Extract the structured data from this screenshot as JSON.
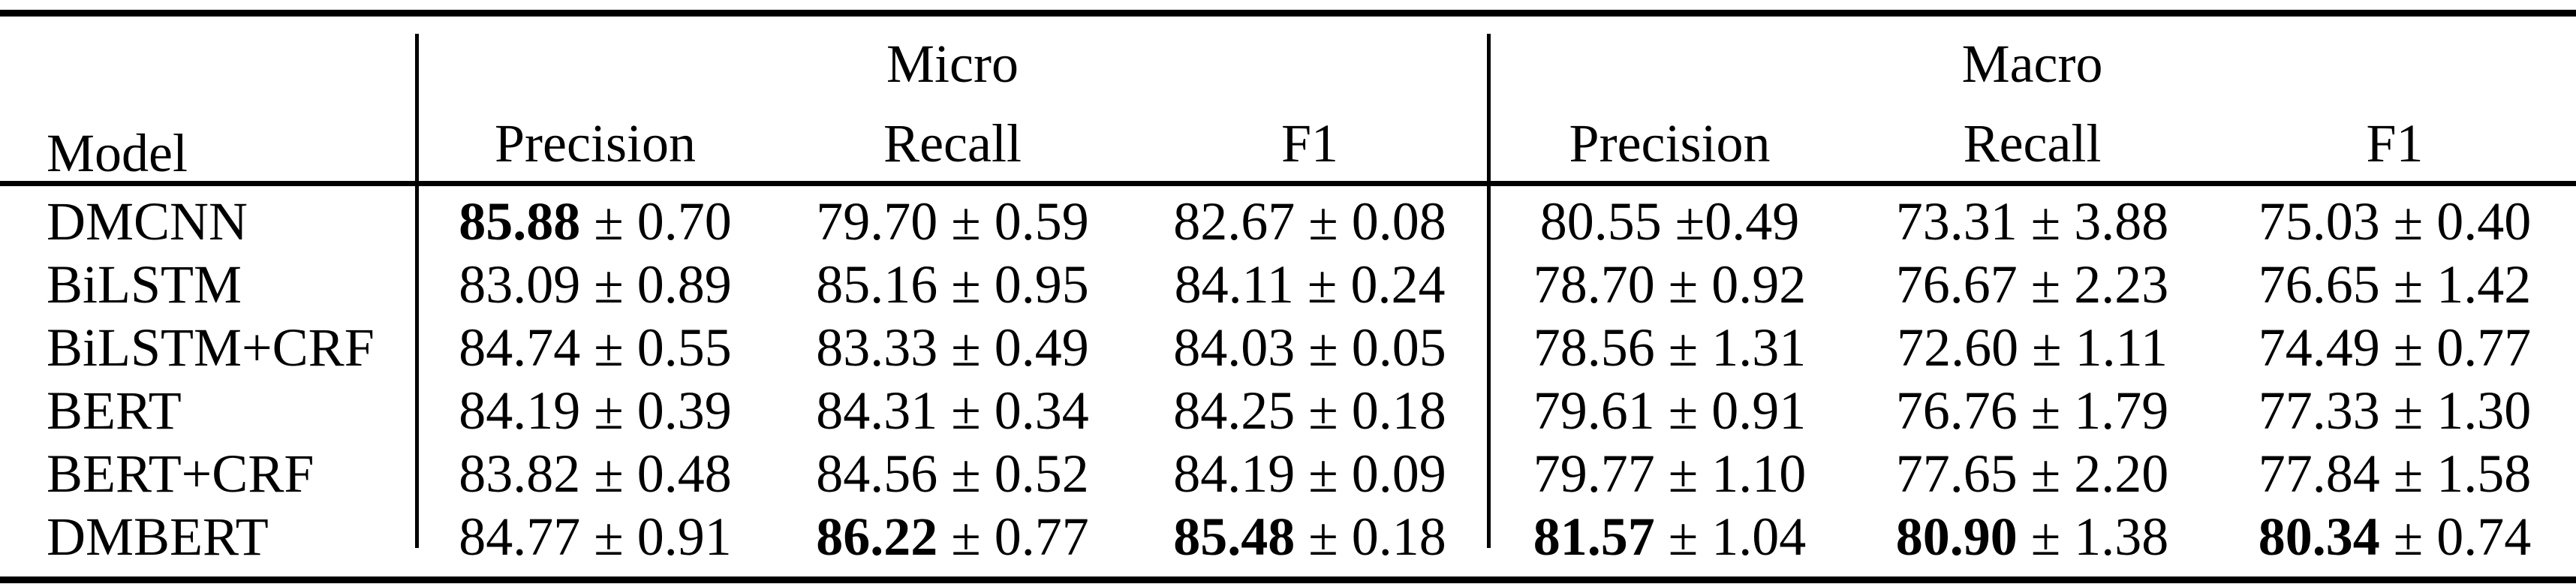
{
  "colors": {
    "text": "#000000",
    "background": "#ffffff",
    "rule": "#000000"
  },
  "table": {
    "header": {
      "model_label": "Model",
      "groups": [
        {
          "label": "Micro",
          "cols": [
            "Precision",
            "Recall",
            "F1"
          ]
        },
        {
          "label": "Macro",
          "cols": [
            "Precision",
            "Recall",
            "F1"
          ]
        }
      ]
    },
    "rows": [
      {
        "model": "DMCNN",
        "cells": [
          {
            "main": "85.88",
            "rest": "± 0.70",
            "bold": true
          },
          {
            "main": "79.70",
            "rest": "± 0.59",
            "bold": false
          },
          {
            "main": "82.67",
            "rest": "± 0.08",
            "bold": false
          },
          {
            "main": "80.55",
            "rest": "±0.49",
            "bold": false
          },
          {
            "main": "73.31",
            "rest": "± 3.88",
            "bold": false
          },
          {
            "main": "75.03",
            "rest": "± 0.40",
            "bold": false
          }
        ]
      },
      {
        "model": "BiLSTM",
        "cells": [
          {
            "main": "83.09",
            "rest": "± 0.89",
            "bold": false
          },
          {
            "main": "85.16",
            "rest": "± 0.95",
            "bold": false
          },
          {
            "main": "84.11",
            "rest": "± 0.24",
            "bold": false
          },
          {
            "main": "78.70",
            "rest": "± 0.92",
            "bold": false
          },
          {
            "main": "76.67",
            "rest": "± 2.23",
            "bold": false
          },
          {
            "main": "76.65",
            "rest": "± 1.42",
            "bold": false
          }
        ]
      },
      {
        "model": "BiLSTM+CRF",
        "cells": [
          {
            "main": "84.74",
            "rest": "± 0.55",
            "bold": false
          },
          {
            "main": "83.33",
            "rest": "± 0.49",
            "bold": false
          },
          {
            "main": "84.03",
            "rest": "± 0.05",
            "bold": false
          },
          {
            "main": "78.56",
            "rest": "± 1.31",
            "bold": false
          },
          {
            "main": "72.60",
            "rest": "± 1.11",
            "bold": false
          },
          {
            "main": "74.49",
            "rest": "± 0.77",
            "bold": false
          }
        ]
      },
      {
        "model": "BERT",
        "cells": [
          {
            "main": "84.19",
            "rest": "± 0.39",
            "bold": false
          },
          {
            "main": "84.31",
            "rest": "± 0.34",
            "bold": false
          },
          {
            "main": "84.25",
            "rest": "± 0.18",
            "bold": false
          },
          {
            "main": "79.61",
            "rest": "± 0.91",
            "bold": false
          },
          {
            "main": "76.76",
            "rest": "± 1.79",
            "bold": false
          },
          {
            "main": "77.33",
            "rest": "± 1.30",
            "bold": false
          }
        ]
      },
      {
        "model": "BERT+CRF",
        "cells": [
          {
            "main": "83.82",
            "rest": "± 0.48",
            "bold": false
          },
          {
            "main": "84.56",
            "rest": "± 0.52",
            "bold": false
          },
          {
            "main": "84.19",
            "rest": "± 0.09",
            "bold": false
          },
          {
            "main": "79.77",
            "rest": "± 1.10",
            "bold": false
          },
          {
            "main": "77.65",
            "rest": "± 2.20",
            "bold": false
          },
          {
            "main": "77.84",
            "rest": "± 1.58",
            "bold": false
          }
        ]
      },
      {
        "model": "DMBERT",
        "cells": [
          {
            "main": "84.77",
            "rest": "± 0.91",
            "bold": false
          },
          {
            "main": "86.22",
            "rest": "± 0.77",
            "bold": true
          },
          {
            "main": "85.48",
            "rest": "± 0.18",
            "bold": true
          },
          {
            "main": "81.57",
            "rest": "± 1.04",
            "bold": true
          },
          {
            "main": "80.90",
            "rest": "± 1.38",
            "bold": true
          },
          {
            "main": "80.34",
            "rest": "± 0.74",
            "bold": true
          }
        ]
      }
    ]
  }
}
